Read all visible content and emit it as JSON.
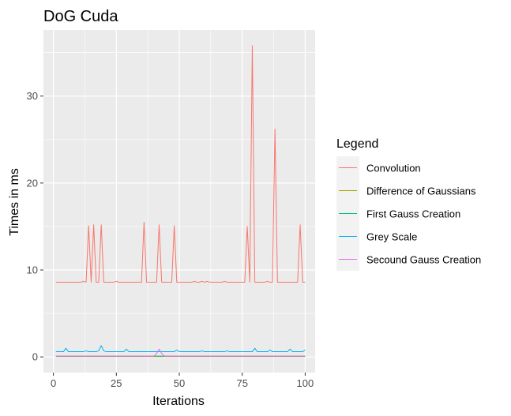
{
  "chart_data": {
    "type": "line",
    "title": "DoG Cuda",
    "xlabel": "Iterations",
    "ylabel": "Times in ms",
    "xlim": [
      -3.95,
      103.95
    ],
    "ylim": [
      -1.8,
      37.6
    ],
    "xticks": [
      0,
      25,
      50,
      75,
      100
    ],
    "yticks": [
      0,
      10,
      20,
      30
    ],
    "grid": true,
    "legend": {
      "title": "Legend",
      "placement": "right"
    },
    "series": [
      {
        "name": "Convolution",
        "color": "#F8766D",
        "x": [
          1,
          2,
          3,
          4,
          5,
          6,
          7,
          8,
          9,
          10,
          11,
          12,
          13,
          14,
          15,
          16,
          17,
          18,
          19,
          20,
          21,
          22,
          23,
          24,
          25,
          26,
          27,
          28,
          29,
          30,
          31,
          32,
          33,
          34,
          35,
          36,
          37,
          38,
          39,
          40,
          41,
          42,
          43,
          44,
          45,
          46,
          47,
          48,
          49,
          50,
          51,
          52,
          53,
          54,
          55,
          56,
          57,
          58,
          59,
          60,
          61,
          62,
          63,
          64,
          65,
          66,
          67,
          68,
          69,
          70,
          71,
          72,
          73,
          74,
          75,
          76,
          77,
          78,
          79,
          80,
          81,
          82,
          83,
          84,
          85,
          86,
          87,
          88,
          89,
          90,
          91,
          92,
          93,
          94,
          95,
          96,
          97,
          98,
          99,
          100
        ],
        "values": [
          8.6,
          8.6,
          8.6,
          8.6,
          8.6,
          8.6,
          8.6,
          8.6,
          8.6,
          8.6,
          8.6,
          8.7,
          8.6,
          15.1,
          8.6,
          15.2,
          8.6,
          8.6,
          15.2,
          8.6,
          8.6,
          8.6,
          8.6,
          8.6,
          8.7,
          8.6,
          8.6,
          8.6,
          8.6,
          8.6,
          8.6,
          8.6,
          8.6,
          8.6,
          8.6,
          15.5,
          8.6,
          8.6,
          8.6,
          8.6,
          8.6,
          15.2,
          8.6,
          8.6,
          8.6,
          8.6,
          8.6,
          15.1,
          8.6,
          8.6,
          8.6,
          8.6,
          8.6,
          8.6,
          8.6,
          8.7,
          8.6,
          8.6,
          8.7,
          8.6,
          8.7,
          8.6,
          8.6,
          8.6,
          8.6,
          8.6,
          8.6,
          8.7,
          8.6,
          8.6,
          8.6,
          8.6,
          8.6,
          8.6,
          8.6,
          8.6,
          15.0,
          8.6,
          35.8,
          8.6,
          8.6,
          8.6,
          8.6,
          8.6,
          8.7,
          8.6,
          8.6,
          26.2,
          8.6,
          8.6,
          8.6,
          8.6,
          8.6,
          8.6,
          8.6,
          8.6,
          8.6,
          15.2,
          8.6,
          8.6
        ]
      },
      {
        "name": "Difference of Gaussians",
        "color": "#A3A500",
        "x": [
          1,
          100
        ],
        "values": [
          0.05,
          0.05
        ]
      },
      {
        "name": "First Gauss Creation",
        "color": "#00BF7D",
        "x": [
          1,
          100
        ],
        "values": [
          0.1,
          0.1
        ]
      },
      {
        "name": "Grey Scale",
        "color": "#00B0F6",
        "x": [
          1,
          2,
          3,
          4,
          5,
          6,
          7,
          8,
          9,
          10,
          11,
          12,
          13,
          14,
          15,
          16,
          17,
          18,
          19,
          20,
          21,
          22,
          23,
          24,
          25,
          26,
          27,
          28,
          29,
          30,
          31,
          32,
          33,
          34,
          35,
          36,
          37,
          38,
          39,
          40,
          41,
          42,
          43,
          44,
          45,
          46,
          47,
          48,
          49,
          50,
          51,
          52,
          53,
          54,
          55,
          56,
          57,
          58,
          59,
          60,
          61,
          62,
          63,
          64,
          65,
          66,
          67,
          68,
          69,
          70,
          71,
          72,
          73,
          74,
          75,
          76,
          77,
          78,
          79,
          80,
          81,
          82,
          83,
          84,
          85,
          86,
          87,
          88,
          89,
          90,
          91,
          92,
          93,
          94,
          95,
          96,
          97,
          98,
          99,
          100
        ],
        "values": [
          0.6,
          0.6,
          0.6,
          0.6,
          1.0,
          0.6,
          0.6,
          0.6,
          0.6,
          0.6,
          0.6,
          0.6,
          0.7,
          0.6,
          0.6,
          0.6,
          0.6,
          0.7,
          1.3,
          0.7,
          0.6,
          0.6,
          0.6,
          0.6,
          0.6,
          0.6,
          0.6,
          0.6,
          0.9,
          0.6,
          0.6,
          0.6,
          0.6,
          0.6,
          0.6,
          0.6,
          0.6,
          0.6,
          0.6,
          0.6,
          0.6,
          0.6,
          0.6,
          0.6,
          0.6,
          0.6,
          0.6,
          0.6,
          0.8,
          0.6,
          0.6,
          0.6,
          0.6,
          0.6,
          0.6,
          0.6,
          0.6,
          0.6,
          0.7,
          0.6,
          0.6,
          0.6,
          0.6,
          0.6,
          0.6,
          0.6,
          0.6,
          0.6,
          0.7,
          0.6,
          0.6,
          0.6,
          0.6,
          0.6,
          0.6,
          0.6,
          0.6,
          0.6,
          0.6,
          1.0,
          0.6,
          0.6,
          0.6,
          0.6,
          0.6,
          0.8,
          0.6,
          0.6,
          0.6,
          0.6,
          0.6,
          0.6,
          0.6,
          0.9,
          0.6,
          0.6,
          0.6,
          0.6,
          0.6,
          0.8
        ]
      },
      {
        "name": "Secound Gauss Creation",
        "color": "#E76BF3",
        "x": [
          1,
          40,
          41,
          42,
          43,
          44,
          100
        ],
        "values": [
          0.1,
          0.1,
          0.4,
          0.9,
          0.4,
          0.1,
          0.1
        ]
      }
    ]
  },
  "colors": {
    "panel_background": "#EBEBEB",
    "grid_major": "#FFFFFF",
    "legend_key_background": "#F2F2F2"
  }
}
